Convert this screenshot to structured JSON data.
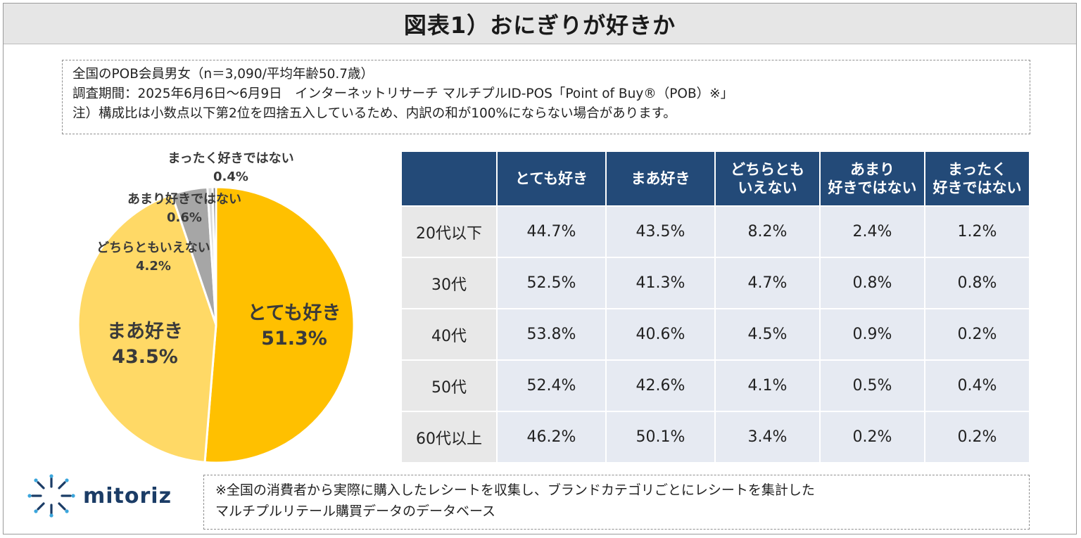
{
  "title": "図表1）おにぎりが好きか",
  "notes": [
    "全国のPOB会員男女（n＝3,090/平均年齢50.7歳）",
    "調査期間：2025年6月6日～6月9日　インターネットリサーチ マルチプルID-POS「Point of Buy®（POB）※」",
    "注）構成比は小数点以下第2位を四捨五入しているため、内訳の和が100%にならない場合があります。"
  ],
  "chart_data": [
    {
      "type": "pie",
      "title": "",
      "slices": [
        {
          "label": "とても好き",
          "value": 51.3,
          "value_label": "51.3%",
          "color": "#ffc000"
        },
        {
          "label": "まあ好き",
          "value": 43.5,
          "value_label": "43.5%",
          "color": "#ffd966"
        },
        {
          "label": "どちらともいえない",
          "value": 4.2,
          "value_label": "4.2%",
          "color": "#a6a6a6"
        },
        {
          "label": "あまり好きではない",
          "value": 0.6,
          "value_label": "0.6%",
          "color": "#d9d9d9"
        },
        {
          "label": "まったく好きではない",
          "value": 0.4,
          "value_label": "0.4%",
          "color": "#7f7f7f"
        }
      ]
    },
    {
      "type": "table",
      "columns": [
        "",
        "とても好き",
        "まあ好き",
        "どちらとも\nいえない",
        "あまり\n好きではない",
        "まったく\n好きではない"
      ],
      "rows": [
        {
          "label": "20代以下",
          "values": [
            "44.7%",
            "43.5%",
            "8.2%",
            "2.4%",
            "1.2%"
          ]
        },
        {
          "label": "30代",
          "values": [
            "52.5%",
            "41.3%",
            "4.7%",
            "0.8%",
            "0.8%"
          ]
        },
        {
          "label": "40代",
          "values": [
            "53.8%",
            "40.6%",
            "4.5%",
            "0.9%",
            "0.2%"
          ]
        },
        {
          "label": "50代",
          "values": [
            "52.4%",
            "42.6%",
            "4.1%",
            "0.5%",
            "0.4%"
          ]
        },
        {
          "label": "60代以上",
          "values": [
            "46.2%",
            "50.1%",
            "3.4%",
            "0.2%",
            "0.2%"
          ]
        }
      ]
    }
  ],
  "logo": {
    "text": "mitoriz",
    "icon": "sunburst-logo-icon"
  },
  "footnote": [
    "※全国の消費者から実際に購入したレシートを収集し、ブランドカテゴリごとにレシートを集計した",
    "マルチプルリテール購買データのデータベース"
  ],
  "colors": {
    "header_bg": "#234a78",
    "accent": "#ffc000",
    "logo": "#1b3c66"
  }
}
